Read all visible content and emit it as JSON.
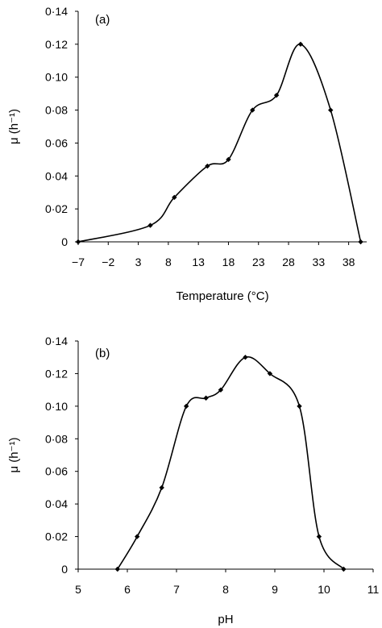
{
  "chart_data": [
    {
      "type": "line",
      "panel_label": "(a)",
      "xlabel": "Temperature (°C)",
      "ylabel": "μ (h⁻¹)",
      "xlim": [
        -7,
        41
      ],
      "ylim": [
        0,
        0.14
      ],
      "x_ticks": [
        -7,
        -2,
        3,
        8,
        13,
        18,
        23,
        28,
        33,
        38
      ],
      "x_tick_labels": [
        "−7",
        "−2",
        "3",
        "8",
        "13",
        "18",
        "23",
        "28",
        "33",
        "38"
      ],
      "y_ticks": [
        0,
        0.02,
        0.04,
        0.06,
        0.08,
        0.1,
        0.12,
        0.14
      ],
      "y_tick_labels": [
        "0",
        "0·02",
        "0·04",
        "0·06",
        "0·08",
        "0·10",
        "0·12",
        "0·14"
      ],
      "grid": false,
      "legend": "none",
      "series": [
        {
          "x": [
            -7,
            5,
            9,
            14.5,
            18,
            22,
            26,
            30,
            35,
            40
          ],
          "y": [
            0,
            0.01,
            0.027,
            0.046,
            0.05,
            0.08,
            0.089,
            0.12,
            0.08,
            0
          ]
        }
      ]
    },
    {
      "type": "line",
      "panel_label": "(b)",
      "xlabel": "pH",
      "ylabel": "μ (h⁻¹)",
      "xlim": [
        5,
        11
      ],
      "ylim": [
        0,
        0.14
      ],
      "x_ticks": [
        5,
        6,
        7,
        8,
        9,
        10,
        11
      ],
      "x_tick_labels": [
        "5",
        "6",
        "7",
        "8",
        "9",
        "10",
        "11"
      ],
      "y_ticks": [
        0,
        0.02,
        0.04,
        0.06,
        0.08,
        0.1,
        0.12,
        0.14
      ],
      "y_tick_labels": [
        "0",
        "0·02",
        "0·04",
        "0·06",
        "0·08",
        "0·10",
        "0·12",
        "0·14"
      ],
      "grid": false,
      "legend": "none",
      "series": [
        {
          "x": [
            5.8,
            6.2,
            6.7,
            7.2,
            7.6,
            7.9,
            8.4,
            8.9,
            9.5,
            9.9,
            10.4
          ],
          "y": [
            0,
            0.02,
            0.05,
            0.1,
            0.105,
            0.11,
            0.13,
            0.12,
            0.1,
            0.02,
            0
          ]
        }
      ]
    }
  ]
}
